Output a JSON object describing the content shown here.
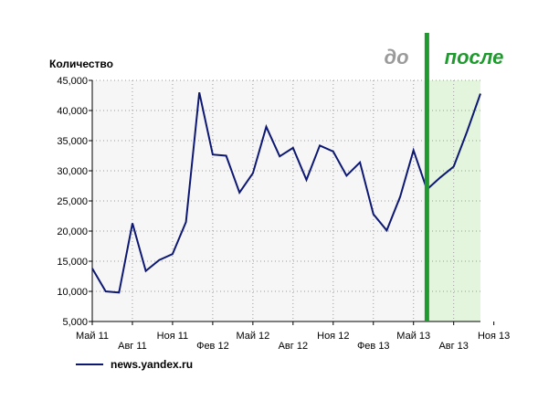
{
  "chart_data": {
    "type": "line",
    "ylabel": "Количество",
    "ylim": [
      5000,
      45000
    ],
    "yticks": [
      5000,
      10000,
      15000,
      20000,
      25000,
      30000,
      35000,
      40000,
      45000
    ],
    "ytick_labels": [
      "5,000",
      "10,000",
      "15,000",
      "20,000",
      "25,000",
      "30,000",
      "35,000",
      "40,000",
      "45,000"
    ],
    "xlim": [
      0,
      29
    ],
    "xticks": [
      {
        "x": 0,
        "label": "Май 11",
        "row": 1
      },
      {
        "x": 3,
        "label": "Авг 11",
        "row": 2
      },
      {
        "x": 6,
        "label": "Ноя 11",
        "row": 1
      },
      {
        "x": 9,
        "label": "Фев 12",
        "row": 2
      },
      {
        "x": 12,
        "label": "Май 12",
        "row": 1
      },
      {
        "x": 15,
        "label": "Авг 12",
        "row": 2
      },
      {
        "x": 18,
        "label": "Ноя 12",
        "row": 1
      },
      {
        "x": 21,
        "label": "Фев 13",
        "row": 2
      },
      {
        "x": 24,
        "label": "Май 13",
        "row": 1
      },
      {
        "x": 27,
        "label": "Авг 13",
        "row": 2
      },
      {
        "x": 30,
        "label": "Ноя 13",
        "row": 1
      }
    ],
    "grid": true,
    "series": [
      {
        "name": "news.yandex.ru",
        "color": "#0d1873",
        "x": [
          0,
          1,
          2,
          3,
          4,
          5,
          6,
          7,
          8,
          9,
          10,
          11,
          12,
          13,
          14,
          15,
          16,
          17,
          18,
          19,
          20,
          21,
          22,
          23,
          24,
          25,
          26,
          27,
          28,
          29
        ],
        "values": [
          13800,
          10000,
          9800,
          21300,
          13400,
          15200,
          16200,
          21500,
          43000,
          32700,
          32500,
          26400,
          29600,
          37300,
          32400,
          33800,
          28500,
          34200,
          33200,
          29200,
          31400,
          22800,
          20100,
          25700,
          33400,
          26900,
          28900,
          30700,
          36500,
          42800
        ]
      }
    ],
    "annotations": {
      "before_label": "до",
      "after_label": "после",
      "divider_x": 25.0,
      "highlight_range": [
        25.0,
        29
      ],
      "divider_color": "#1f9a2e",
      "highlight_color": "#e4f5de",
      "before_color": "#9a9a9a",
      "after_color": "#1f9a2e"
    },
    "legend": {
      "position": "bottom-left"
    }
  }
}
